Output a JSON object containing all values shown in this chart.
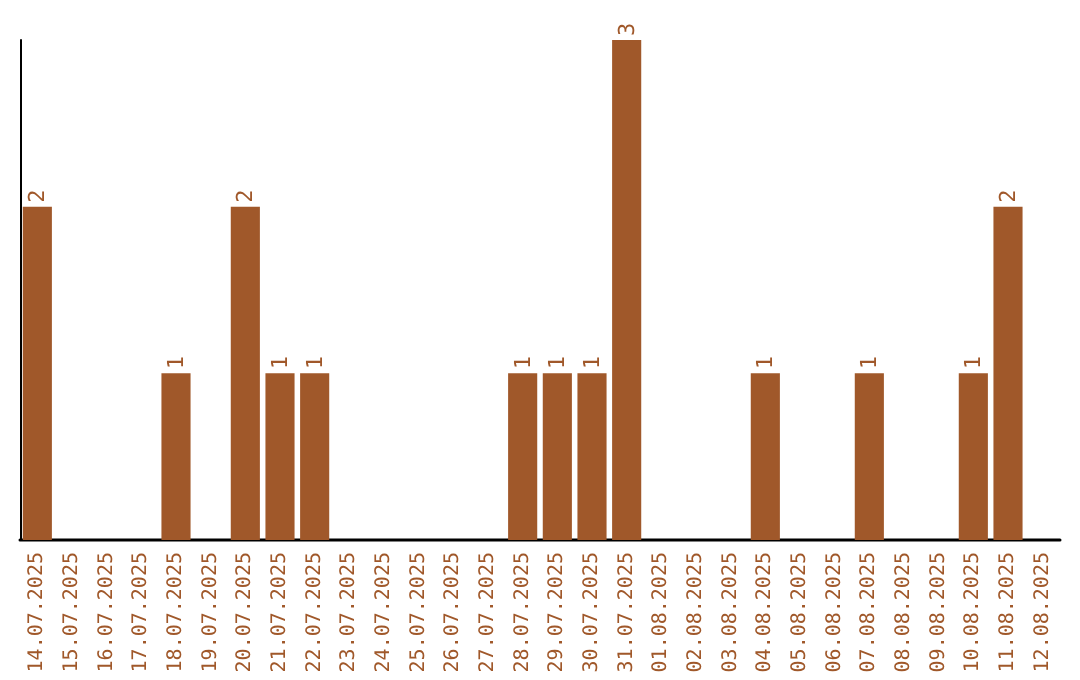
{
  "chart_data": {
    "type": "bar",
    "categories": [
      "14.07.2025",
      "15.07.2025",
      "16.07.2025",
      "17.07.2025",
      "18.07.2025",
      "19.07.2025",
      "20.07.2025",
      "21.07.2025",
      "22.07.2025",
      "23.07.2025",
      "24.07.2025",
      "25.07.2025",
      "26.07.2025",
      "27.07.2025",
      "28.07.2025",
      "29.07.2025",
      "30.07.2025",
      "31.07.2025",
      "01.08.2025",
      "02.08.2025",
      "03.08.2025",
      "04.08.2025",
      "05.08.2025",
      "06.08.2025",
      "07.08.2025",
      "08.08.2025",
      "09.08.2025",
      "10.08.2025",
      "11.08.2025",
      "12.08.2025"
    ],
    "values": [
      2,
      0,
      0,
      0,
      1,
      0,
      2,
      1,
      1,
      0,
      0,
      0,
      0,
      0,
      1,
      1,
      1,
      3,
      0,
      0,
      0,
      1,
      0,
      0,
      1,
      0,
      0,
      1,
      2,
      0
    ],
    "value_labels": [
      "2",
      null,
      null,
      null,
      "1",
      null,
      "2",
      "1",
      "1",
      null,
      null,
      null,
      null,
      null,
      "1",
      "1",
      "1",
      "3",
      null,
      null,
      null,
      "1",
      null,
      null,
      "1",
      null,
      null,
      "1",
      "2",
      null
    ],
    "color": "#a0582a",
    "tick_labels": "x"
  }
}
